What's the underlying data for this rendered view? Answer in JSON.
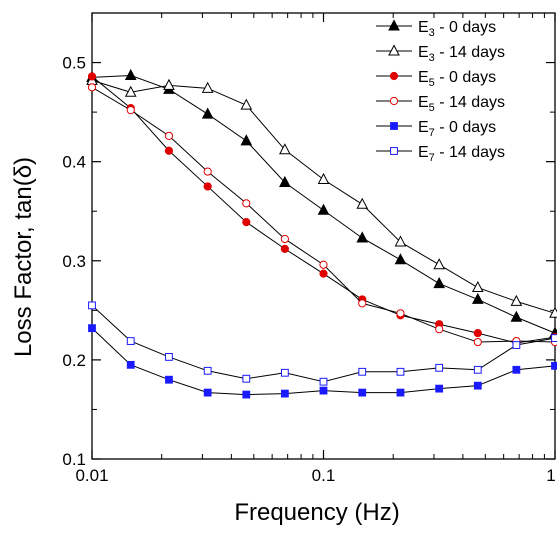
{
  "chart_data": {
    "type": "line",
    "xlabel": "Frequency (Hz)",
    "ylabel": "Loss Factor, tan(δ)",
    "xscale": "log",
    "xlim": [
      0.01,
      1
    ],
    "ylim": [
      0.1,
      0.55
    ],
    "x_ticks": [
      {
        "value": 0.01,
        "label": "0.01"
      },
      {
        "value": 0.1,
        "label": "0.1"
      },
      {
        "value": 1,
        "label": "1"
      }
    ],
    "y_ticks": [
      {
        "value": 0.1,
        "label": "0.1"
      },
      {
        "value": 0.2,
        "label": "0.2"
      },
      {
        "value": 0.3,
        "label": "0.3"
      },
      {
        "value": 0.4,
        "label": "0.4"
      },
      {
        "value": 0.5,
        "label": "0.5"
      }
    ],
    "grid": false,
    "legend_position": "top-right",
    "x": [
      0.01,
      0.0147,
      0.0215,
      0.0316,
      0.0464,
      0.0681,
      0.1,
      0.147,
      0.215,
      0.316,
      0.464,
      0.681,
      1
    ],
    "series": [
      {
        "name": "E3 - 0 days",
        "label_main": "E",
        "label_sub": "3",
        "label_rest": " - 0 days",
        "color": "#000000",
        "marker": "triangle",
        "filled": true,
        "values": [
          0.485,
          0.487,
          0.473,
          0.448,
          0.421,
          0.379,
          0.351,
          0.323,
          0.301,
          0.277,
          0.261,
          0.243,
          0.227
        ]
      },
      {
        "name": "E3 - 14 days",
        "label_main": "E",
        "label_sub": "3",
        "label_rest": " - 14 days",
        "color": "#000000",
        "marker": "triangle",
        "filled": false,
        "values": [
          0.482,
          0.47,
          0.477,
          0.474,
          0.457,
          0.412,
          0.382,
          0.357,
          0.319,
          0.296,
          0.273,
          0.259,
          0.247
        ]
      },
      {
        "name": "E5 - 0 days",
        "label_main": "E",
        "label_sub": "5",
        "label_rest": " - 0 days",
        "color": "#e00000",
        "marker": "circle",
        "filled": true,
        "values": [
          0.486,
          0.454,
          0.411,
          0.375,
          0.339,
          0.312,
          0.287,
          0.261,
          0.245,
          0.236,
          0.227,
          0.217,
          0.223
        ]
      },
      {
        "name": "E5 - 14 days",
        "label_main": "E",
        "label_sub": "5",
        "label_rest": " - 14 days",
        "color": "#e00000",
        "marker": "circle",
        "filled": false,
        "values": [
          0.475,
          0.452,
          0.426,
          0.39,
          0.358,
          0.322,
          0.296,
          0.257,
          0.247,
          0.231,
          0.218,
          0.219,
          0.218
        ]
      },
      {
        "name": "E7 - 0 days",
        "label_main": "E",
        "label_sub": "7",
        "label_rest": " - 0 days",
        "color": "#1a1aff",
        "marker": "square",
        "filled": true,
        "values": [
          0.232,
          0.195,
          0.18,
          0.167,
          0.165,
          0.166,
          0.169,
          0.167,
          0.167,
          0.171,
          0.174,
          0.19,
          0.194
        ]
      },
      {
        "name": "E7 - 14 days",
        "label_main": "E",
        "label_sub": "7",
        "label_rest": " - 14 days",
        "color": "#1a1aff",
        "marker": "square",
        "filled": false,
        "values": [
          0.255,
          0.219,
          0.203,
          0.189,
          0.181,
          0.187,
          0.178,
          0.188,
          0.188,
          0.192,
          0.19,
          0.215,
          0.222
        ]
      }
    ]
  }
}
